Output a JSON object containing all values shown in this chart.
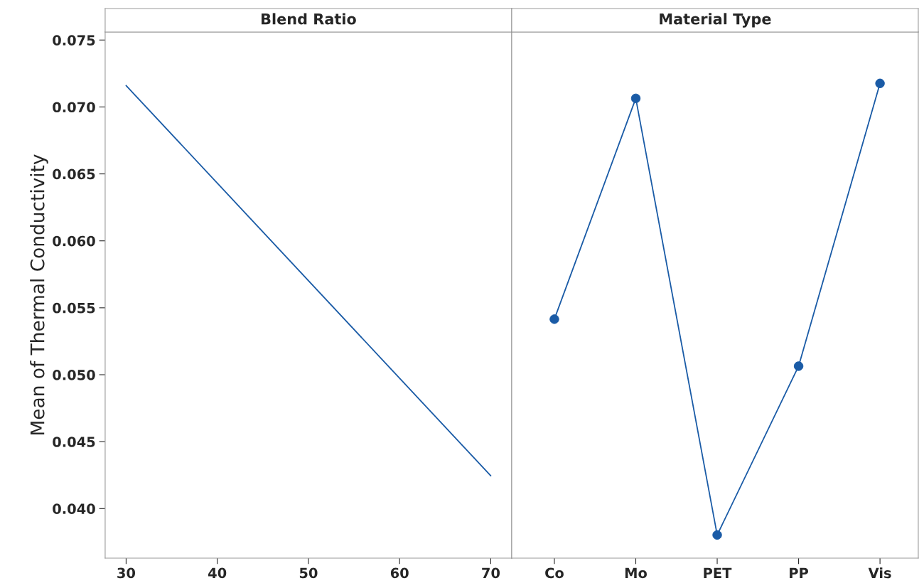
{
  "chart_data": [
    {
      "type": "line",
      "title": "Blend Ratio",
      "ylabel": "Mean of Thermal Conductivity",
      "x": [
        30,
        70
      ],
      "xlim": [
        27.7,
        72.3
      ],
      "xticks": [
        30,
        40,
        50,
        60,
        70
      ],
      "ylim": [
        0.0363,
        0.0756
      ],
      "yticks": [
        {
          "value": 0.04,
          "label": "0.040"
        },
        {
          "value": 0.045,
          "label": "0.045"
        },
        {
          "value": 0.05,
          "label": "0.050"
        },
        {
          "value": 0.055,
          "label": "0.055"
        },
        {
          "value": 0.06,
          "label": "0.060"
        },
        {
          "value": 0.065,
          "label": "0.065"
        },
        {
          "value": 0.07,
          "label": "0.070"
        },
        {
          "value": 0.075,
          "label": "0.075"
        }
      ],
      "series": [
        {
          "color": "#1a5ba6",
          "values": [
            0.0716,
            0.04245
          ]
        }
      ],
      "grid": false,
      "legend": false,
      "marker": "none"
    },
    {
      "type": "line",
      "title": "Material Type",
      "categories": [
        "Co",
        "Mo",
        "PET",
        "PP",
        "Vis"
      ],
      "ylim": [
        0.0363,
        0.0756
      ],
      "tick_labels": "x",
      "series": [
        {
          "color": "#1a5ba6",
          "values": [
            0.05415,
            0.07064,
            0.03803,
            0.05064,
            0.07176
          ]
        }
      ],
      "grid": false,
      "legend": false,
      "marker": "circle"
    }
  ]
}
